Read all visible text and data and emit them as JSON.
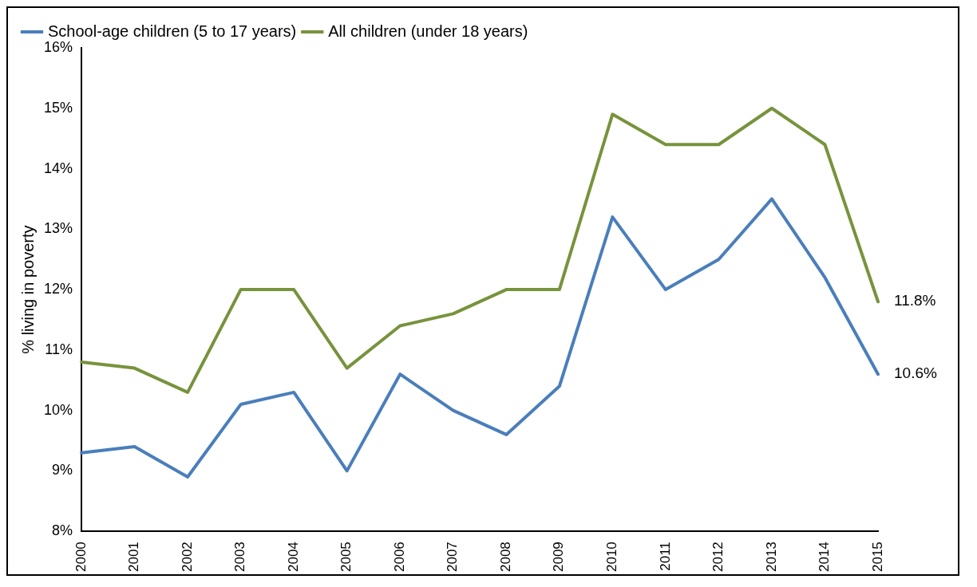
{
  "chart_data": {
    "type": "line",
    "ylabel": "% living in poverty",
    "categories": [
      "2000",
      "2001",
      "2002",
      "2003",
      "2004",
      "2005",
      "2006",
      "2007",
      "2008",
      "2009",
      "2010",
      "2011",
      "2012",
      "2013",
      "2014",
      "2015"
    ],
    "series": [
      {
        "name": "School-age children (5 to 17 years)",
        "color": "#4a7ebb",
        "values": [
          9.3,
          9.4,
          8.9,
          10.1,
          10.3,
          9.0,
          10.6,
          10.0,
          9.6,
          10.4,
          13.2,
          12.0,
          12.5,
          13.5,
          12.2,
          10.6
        ],
        "value_labels": [
          null,
          null,
          null,
          null,
          null,
          null,
          null,
          null,
          null,
          null,
          null,
          null,
          null,
          null,
          null,
          "10.6%"
        ]
      },
      {
        "name": "All children (under 18 years)",
        "color": "#77933c",
        "values": [
          10.8,
          10.7,
          10.3,
          12.0,
          12.0,
          10.7,
          11.4,
          11.6,
          12.0,
          12.0,
          14.9,
          14.4,
          14.4,
          15.0,
          14.4,
          11.8
        ],
        "value_labels": [
          null,
          null,
          null,
          null,
          null,
          null,
          null,
          null,
          null,
          null,
          null,
          null,
          null,
          null,
          null,
          "11.8%"
        ]
      }
    ],
    "ylim": [
      8,
      16
    ],
    "yticks": [
      {
        "value": 8,
        "label": "8%"
      },
      {
        "value": 9,
        "label": "9%"
      },
      {
        "value": 10,
        "label": "10%"
      },
      {
        "value": 11,
        "label": "11%"
      },
      {
        "value": 12,
        "label": "12%"
      },
      {
        "value": 13,
        "label": "13%"
      },
      {
        "value": 14,
        "label": "14%"
      },
      {
        "value": 15,
        "label": "15%"
      },
      {
        "value": 16,
        "label": "16%"
      }
    ],
    "grid": false,
    "legend": "top",
    "marker": "none",
    "line_style": "solid"
  }
}
